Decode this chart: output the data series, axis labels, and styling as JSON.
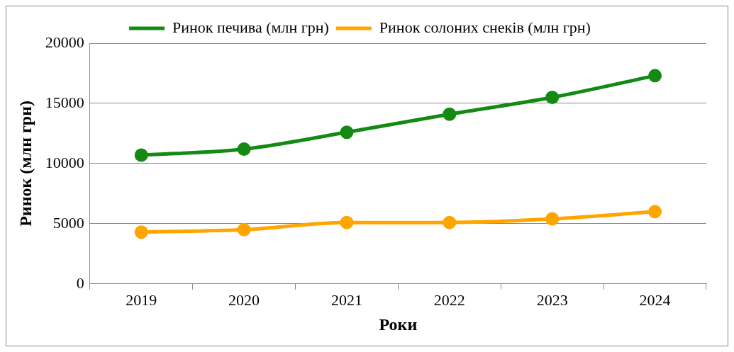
{
  "chart_data": {
    "type": "line",
    "xlabel": "Роки",
    "ylabel": "Ринок (млн грн)",
    "categories": [
      "2019",
      "2020",
      "2021",
      "2022",
      "2023",
      "2024"
    ],
    "series": [
      {
        "name": "Ринок печива (млн грн)",
        "color": "#138a13",
        "values": [
          10700,
          11200,
          12600,
          14100,
          15500,
          17300
        ]
      },
      {
        "name": "Ринок солоних снеків (млн грн)",
        "color": "#ffa500",
        "values": [
          4300,
          4500,
          5100,
          5100,
          5400,
          6000
        ]
      }
    ],
    "ylim": [
      0,
      20000
    ],
    "yticks": [
      0,
      5000,
      10000,
      15000,
      20000
    ],
    "grid": "y",
    "legend": "top",
    "marker": "circle",
    "line_style": "solid"
  }
}
